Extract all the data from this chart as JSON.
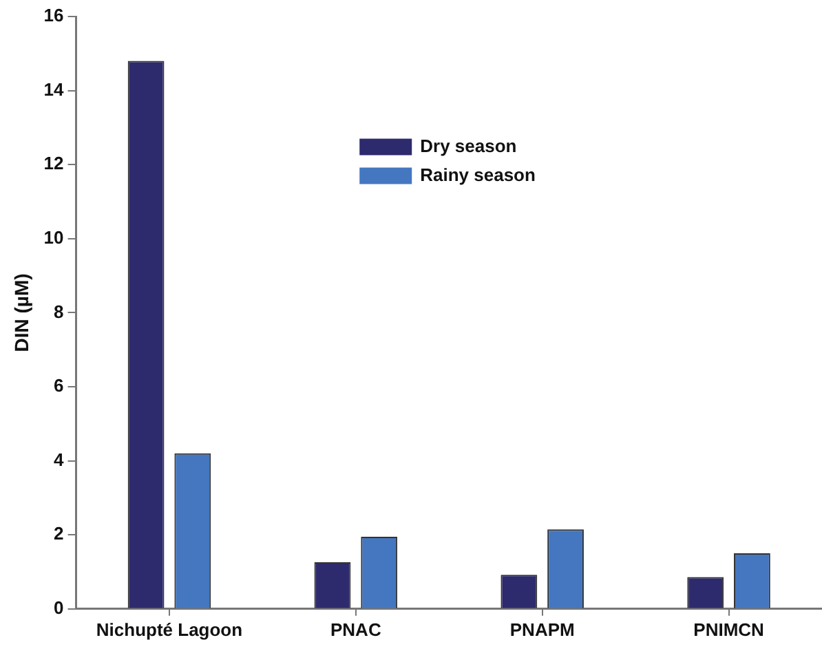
{
  "chart_data": {
    "type": "bar",
    "ylabel": "DIN (µM)",
    "categories": [
      "Nichupté Lagoon",
      "PNAC",
      "PNAPM",
      "PNIMCN"
    ],
    "series": [
      {
        "name": "Dry season",
        "color": "#2e2a6e",
        "values": [
          14.8,
          1.26,
          0.92,
          0.86
        ]
      },
      {
        "name": "Rainy season",
        "color": "#4477c0",
        "values": [
          4.2,
          1.95,
          2.15,
          1.5
        ]
      }
    ],
    "ylim": [
      0,
      16
    ],
    "yticks": [
      0,
      2,
      4,
      6,
      8,
      10,
      12,
      14,
      16
    ],
    "grid": false,
    "legend": "top"
  }
}
